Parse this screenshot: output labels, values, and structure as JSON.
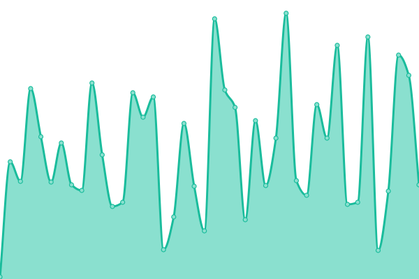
{
  "chart_data": {
    "type": "area",
    "title": "",
    "xlabel": "",
    "ylabel": "",
    "x": [
      0,
      1,
      2,
      3,
      4,
      5,
      6,
      7,
      8,
      9,
      10,
      11,
      12,
      13,
      14,
      15,
      16,
      17,
      18,
      19,
      20,
      21,
      22,
      23,
      24,
      25,
      26,
      27,
      28,
      29,
      30,
      31,
      32,
      33,
      34,
      35,
      36,
      37,
      38,
      39,
      40,
      41
    ],
    "values": [
      3,
      168,
      140,
      273,
      204,
      139,
      195,
      135,
      127,
      281,
      178,
      104,
      110,
      267,
      232,
      261,
      42,
      89,
      223,
      133,
      69,
      373,
      271,
      246,
      85,
      227,
      134,
      202,
      381,
      141,
      120,
      250,
      202,
      335,
      107,
      110,
      347,
      41,
      126,
      321,
      292,
      135
    ],
    "ylim": [
      0,
      400
    ],
    "grid": false,
    "smooth": true,
    "markers": true,
    "colors": {
      "line": "#1abc9c",
      "fill": "#8ae0cf",
      "marker_fill": "#8ae0cf"
    }
  }
}
